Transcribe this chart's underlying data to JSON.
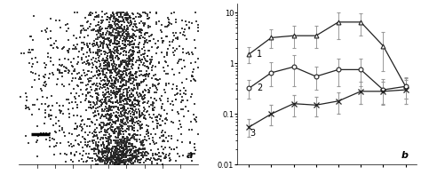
{
  "scatter_seed": 42,
  "scatter_color": "#222222",
  "scatter_marker_size": 2.0,
  "label_a": "a",
  "label_b": "b",
  "line1_label": "1",
  "line2_label": "2",
  "line3_label": "3",
  "x_positions": [
    1,
    2,
    3,
    4,
    5,
    6,
    7,
    8
  ],
  "line1_y": [
    1.5,
    3.2,
    3.5,
    3.5,
    6.5,
    6.5,
    2.2,
    0.35
  ],
  "line1_yerr_lo": [
    0.5,
    1.2,
    1.5,
    1.5,
    3.5,
    3.0,
    1.5,
    0.15
  ],
  "line1_yerr_hi": [
    0.6,
    1.5,
    2.0,
    2.0,
    3.5,
    3.0,
    2.0,
    0.15
  ],
  "line2_y": [
    0.32,
    0.65,
    0.85,
    0.55,
    0.75,
    0.75,
    0.3,
    0.35
  ],
  "line2_yerr_lo": [
    0.12,
    0.3,
    0.5,
    0.25,
    0.4,
    0.4,
    0.15,
    0.15
  ],
  "line2_yerr_hi": [
    0.15,
    0.4,
    0.6,
    0.3,
    0.5,
    0.5,
    0.18,
    0.18
  ],
  "line3_y": [
    0.055,
    0.1,
    0.16,
    0.15,
    0.18,
    0.28,
    0.28,
    0.3
  ],
  "line3_yerr_lo": [
    0.02,
    0.04,
    0.07,
    0.06,
    0.08,
    0.12,
    0.12,
    0.14
  ],
  "line3_yerr_hi": [
    0.025,
    0.05,
    0.08,
    0.07,
    0.09,
    0.15,
    0.15,
    0.16
  ],
  "line1_marker": "^",
  "line2_marker": "o",
  "line3_marker": "x",
  "line_color": "#222222",
  "error_color": "#999999",
  "ylim_log": [
    0.01,
    15
  ],
  "background_color": "#ffffff"
}
